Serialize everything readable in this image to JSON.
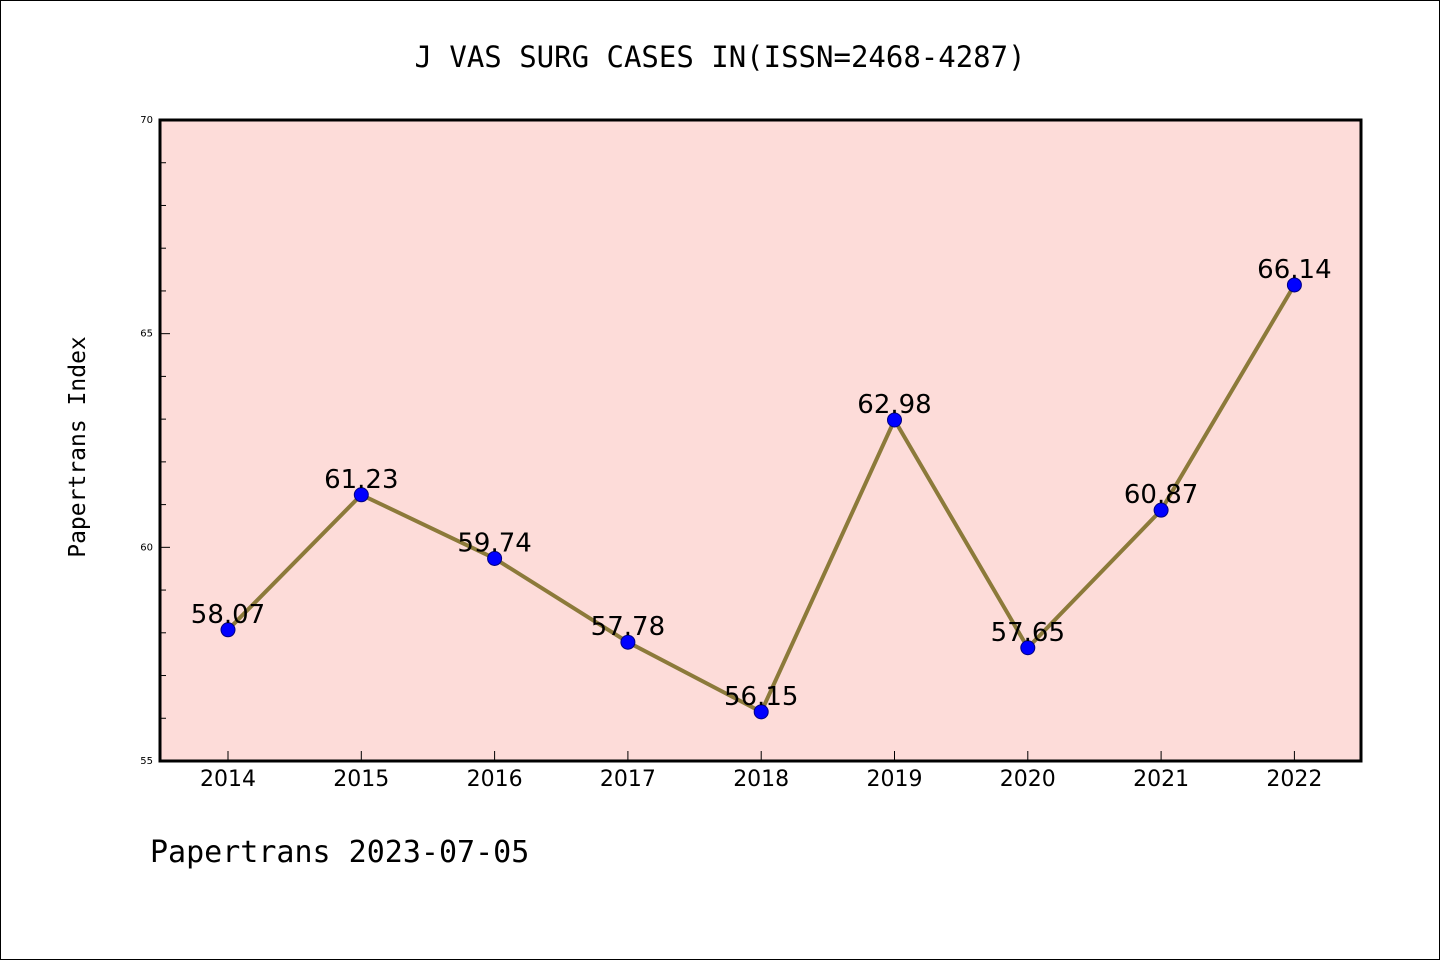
{
  "colors": {
    "plot_background": "#fddcd9",
    "line": "#8c7a3a",
    "marker": "#0000ff",
    "axis": "#000000"
  },
  "footer": {
    "text": "Papertrans 2023-07-05"
  },
  "chart_data": {
    "type": "line",
    "title": "J VAS SURG CASES IN(ISSN=2468-4287)",
    "xlabel": "",
    "ylabel": "Papertrans Index",
    "ylim": [
      55,
      70
    ],
    "yticks": [
      55,
      60,
      65,
      70
    ],
    "grid": false,
    "categories": [
      "2014",
      "2015",
      "2016",
      "2017",
      "2018",
      "2019",
      "2020",
      "2021",
      "2022"
    ],
    "values": [
      58.07,
      61.23,
      59.74,
      57.78,
      56.15,
      62.98,
      57.65,
      60.87,
      66.14
    ],
    "data_labels": [
      "58.07",
      "61.23",
      "59.74",
      "57.78",
      "56.15",
      "62.98",
      "57.65",
      "60.87",
      "66.14"
    ]
  }
}
